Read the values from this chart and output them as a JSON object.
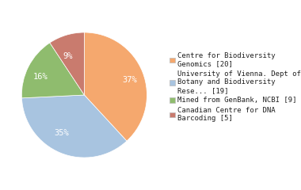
{
  "slices": [
    37,
    35,
    16,
    9
  ],
  "labels": [
    "37%",
    "35%",
    "16%",
    "9%"
  ],
  "colors": [
    "#F5A86E",
    "#A8C4E0",
    "#8FBC6E",
    "#C97B6E"
  ],
  "legend_labels": [
    "Centre for Biodiversity\nGenomics [20]",
    "University of Vienna. Dept of\nBotany and Biodiversity\nRese... [19]",
    "Mined from GenBank, NCBI [9]",
    "Canadian Centre for DNA\nBarcoding [5]"
  ],
  "startangle": 90,
  "legend_fontsize": 6.5,
  "pct_fontsize": 7.5,
  "pct_color": "white",
  "figsize": [
    3.8,
    2.4
  ],
  "dpi": 100
}
